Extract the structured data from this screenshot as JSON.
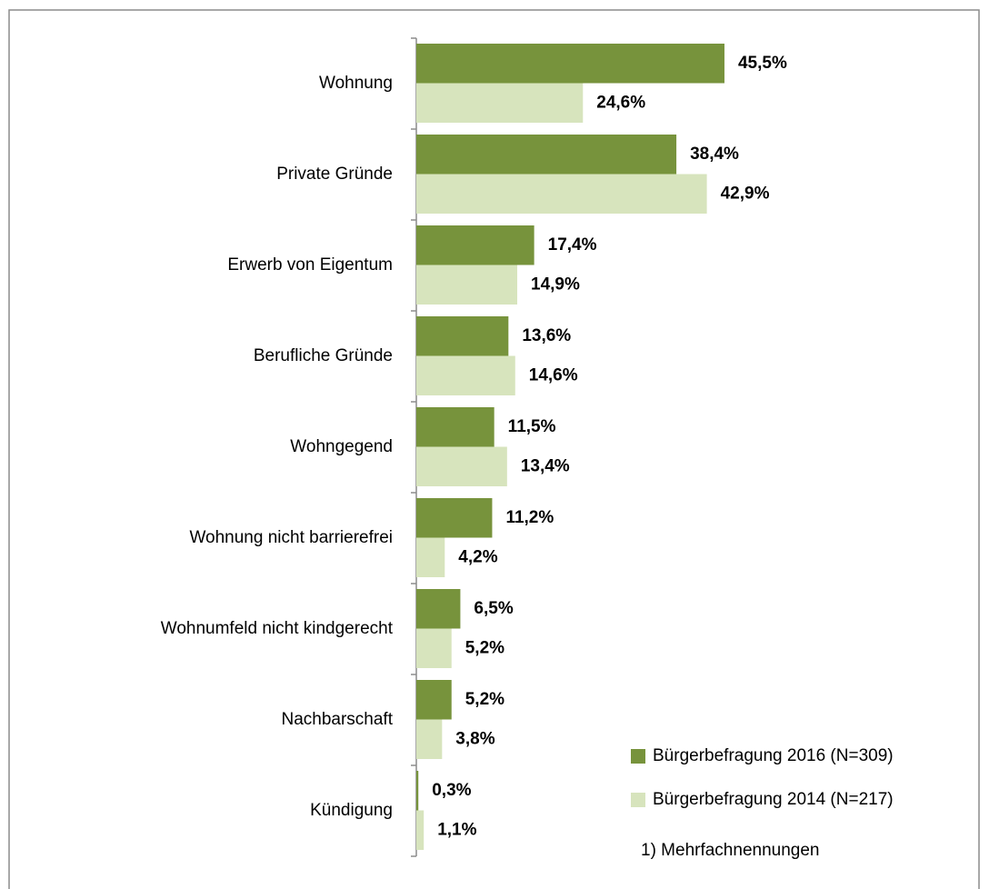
{
  "chart_data": {
    "type": "bar",
    "orientation": "horizontal",
    "categories": [
      "Wohnung",
      "Private Gründe",
      "Erwerb von Eigentum",
      "Berufliche Gründe",
      "Wohngegend",
      "Wohnung nicht barrierefrei",
      "Wohnumfeld nicht kindgerecht",
      "Nachbarschaft",
      "Kündigung"
    ],
    "series": [
      {
        "name": "Bürgerbefragung 2016 (N=309)",
        "color": "#77933c",
        "values": [
          45.5,
          38.4,
          17.4,
          13.6,
          11.5,
          11.2,
          6.5,
          5.2,
          0.3
        ],
        "value_labels": [
          "45,5%",
          "38,4%",
          "17,4%",
          "13,6%",
          "11,5%",
          "11,2%",
          "6,5%",
          "5,2%",
          "0,3%"
        ]
      },
      {
        "name": "Bürgerbefragung 2014 (N=217)",
        "color": "#d7e4bd",
        "values": [
          24.6,
          42.9,
          14.9,
          14.6,
          13.4,
          4.2,
          5.2,
          3.8,
          1.1
        ],
        "value_labels": [
          "24,6%",
          "42,9%",
          "14,9%",
          "14,6%",
          "13,4%",
          "4,2%",
          "5,2%",
          "3,8%",
          "1,1%"
        ]
      }
    ],
    "note": "1) Mehrfachnennungen"
  }
}
